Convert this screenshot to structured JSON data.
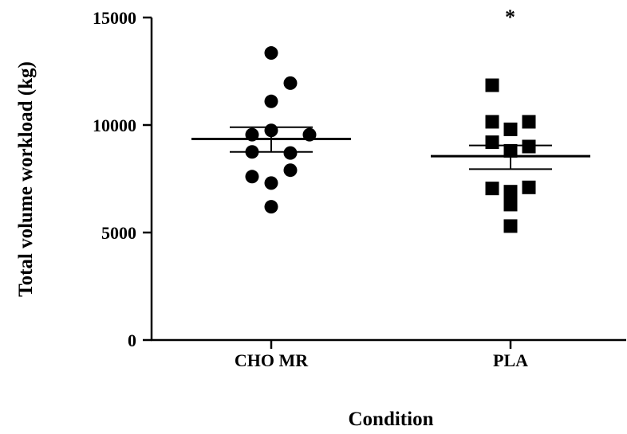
{
  "chart_data": {
    "type": "scatter",
    "title": "",
    "xlabel": "Condition",
    "ylabel": "Total volume workload (kg)",
    "ylim": [
      0,
      15000
    ],
    "yticks": [
      0,
      5000,
      10000,
      15000
    ],
    "ytick_labels": [
      "0",
      "5000",
      "10000",
      "15000"
    ],
    "grid": false,
    "categories": [
      "CHO MR",
      "PLA"
    ],
    "series": [
      {
        "category": "CHO MR",
        "marker": "circle",
        "values": [
          13350,
          11950,
          11100,
          9750,
          9550,
          9550,
          8750,
          8700,
          7900,
          7600,
          7300,
          6200
        ],
        "mean": 9350,
        "sem_upper": 9900,
        "sem_lower": 8750
      },
      {
        "category": "PLA",
        "marker": "square",
        "values": [
          11850,
          10150,
          10150,
          9800,
          9200,
          9000,
          8800,
          7100,
          7050,
          6900,
          6300,
          5300
        ],
        "mean": 8550,
        "sem_upper": 9050,
        "sem_lower": 7950,
        "annotation": "*"
      }
    ],
    "colors": {
      "marker": "#000000",
      "axis": "#000000"
    }
  }
}
